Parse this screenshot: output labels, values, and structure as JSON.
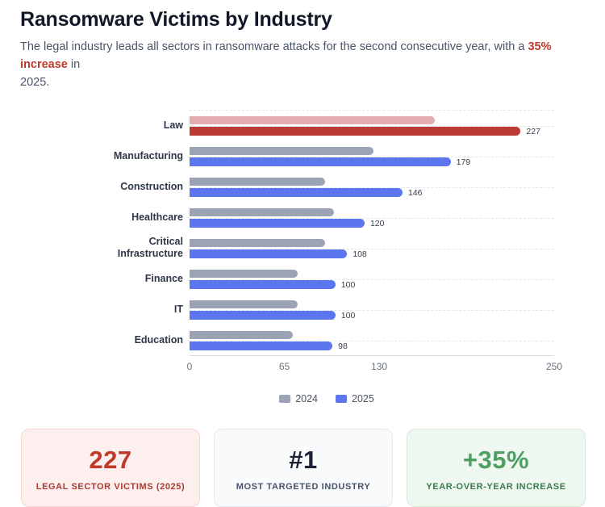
{
  "header": {
    "title": "Ransomware Victims by Industry",
    "subtitle_prefix": "The legal industry leads all sectors in ransomware attacks for the second consecutive year, with a ",
    "subtitle_highlight": "35% increase",
    "subtitle_suffix": " in",
    "subtitle_line2": "2025.",
    "highlight_color": "#c0392b"
  },
  "chart_data": {
    "type": "bar",
    "orientation": "horizontal",
    "title": "",
    "xlabel": "",
    "ylabel": "",
    "categories": [
      "Law",
      "Manufacturing",
      "Construction",
      "Healthcare",
      "Critical Infrastructure",
      "Finance",
      "IT",
      "Education"
    ],
    "series": [
      {
        "name": "2024",
        "color": "#9ba3b4",
        "values": [
          168,
          126,
          93,
          99,
          93,
          74,
          74,
          71
        ]
      },
      {
        "name": "2025",
        "color": "#5b76ee",
        "values": [
          227,
          179,
          146,
          120,
          108,
          100,
          100,
          98
        ]
      }
    ],
    "highlight": {
      "category": "Law",
      "color_2024": "#e4adb0",
      "color_2025": "#bb3a34"
    },
    "value_labels": {
      "labeled_series": "2025",
      "values": [
        227,
        179,
        146,
        120,
        108,
        100,
        100,
        98
      ]
    },
    "xlim": [
      0,
      250
    ],
    "x_ticks": [
      0,
      65,
      130,
      250
    ],
    "grid": "dashed horizontal category lines",
    "legend_position": "bottom"
  },
  "legend": {
    "items": [
      {
        "label": "2024",
        "color": "#9ba3b4"
      },
      {
        "label": "2025",
        "color": "#5b76ee"
      }
    ]
  },
  "stat_cards": [
    {
      "value": "227",
      "label": "LEGAL SECTOR VICTIMS (2025)",
      "accent_color": "#c0392b",
      "background": "#fdefee"
    },
    {
      "value": "#1",
      "label": "MOST TARGETED INDUSTRY",
      "accent_color": "#1b2233",
      "background": "#f8fafc"
    },
    {
      "value": "+35%",
      "label": "YEAR-OVER-YEAR INCREASE",
      "accent_color": "#4f9e63",
      "background": "#eef8f0"
    }
  ]
}
